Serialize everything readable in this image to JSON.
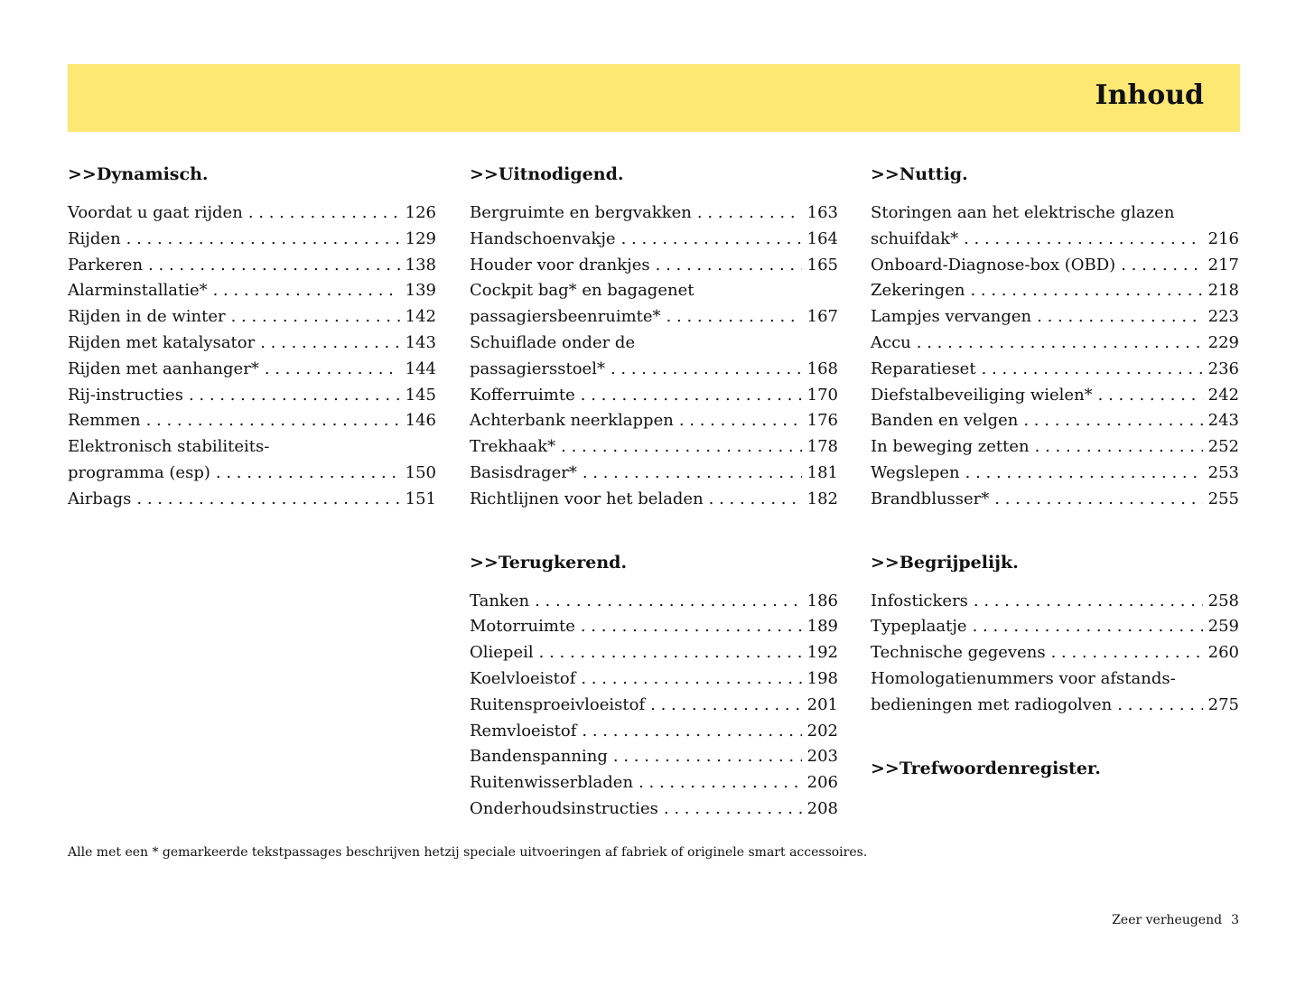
{
  "header": {
    "title": "Inhoud"
  },
  "columns": [
    [
      {
        "heading": ">>Dynamisch.",
        "entries": [
          {
            "text": "Voordat u gaat rijden",
            "page": 126
          },
          {
            "text": "Rijden",
            "page": 129
          },
          {
            "text": "Parkeren",
            "page": 138
          },
          {
            "text": "Alarminstallatie*",
            "page": 139
          },
          {
            "text": "Rijden in de winter",
            "page": 142
          },
          {
            "text": "Rijden met katalysator",
            "page": 143
          },
          {
            "text": "Rijden met aanhanger*",
            "page": 144
          },
          {
            "text": "Rij-instructies",
            "page": 145
          },
          {
            "text": "Remmen",
            "page": 146
          },
          {
            "lines": [
              "Elektronisch stabiliteits-",
              "programma (esp)"
            ],
            "page": 150
          },
          {
            "text": "Airbags",
            "page": 151
          }
        ]
      }
    ],
    [
      {
        "heading": ">>Uitnodigend.",
        "entries": [
          {
            "text": "Bergruimte en bergvakken",
            "page": 163
          },
          {
            "text": "Handschoenvakje",
            "page": 164
          },
          {
            "text": "Houder voor drankjes",
            "page": 165
          },
          {
            "lines": [
              "Cockpit bag* en bagagenet",
              "passagiersbeenruimte*"
            ],
            "page": 167
          },
          {
            "lines": [
              "Schuiflade onder de",
              "passagiersstoel*"
            ],
            "page": 168
          },
          {
            "text": "Kofferruimte",
            "page": 170
          },
          {
            "text": "Achterbank neerklappen",
            "page": 176
          },
          {
            "text": "Trekhaak*",
            "page": 178
          },
          {
            "text": "Basisdrager*",
            "page": 181
          },
          {
            "text": "Richtlijnen voor het beladen",
            "page": 182
          }
        ]
      },
      {
        "heading": ">>Terugkerend.",
        "entries": [
          {
            "text": "Tanken",
            "page": 186
          },
          {
            "text": "Motorruimte",
            "page": 189
          },
          {
            "text": "Oliepeil",
            "page": 192
          },
          {
            "text": "Koelvloeistof",
            "page": 198
          },
          {
            "text": "Ruitensproeivloeistof",
            "page": 201
          },
          {
            "text": "Remvloeistof",
            "page": 202
          },
          {
            "text": "Bandenspanning",
            "page": 203
          },
          {
            "text": "Ruitenwisserbladen",
            "page": 206
          },
          {
            "text": "Onderhoudsinstructies",
            "page": 208
          }
        ]
      }
    ],
    [
      {
        "heading": ">>Nuttig.",
        "entries": [
          {
            "lines": [
              "Storingen aan het elektrische glazen",
              "schuifdak*"
            ],
            "page": 216
          },
          {
            "text": "Onboard-Diagnose-box (OBD)",
            "page": 217
          },
          {
            "text": "Zekeringen",
            "page": 218
          },
          {
            "text": "Lampjes vervangen",
            "page": 223
          },
          {
            "text": "Accu",
            "page": 229
          },
          {
            "text": "Reparatieset",
            "page": 236
          },
          {
            "text": "Diefstalbeveiliging wielen*",
            "page": 242
          },
          {
            "text": "Banden en velgen",
            "page": 243
          },
          {
            "text": "In beweging zetten",
            "page": 252
          },
          {
            "text": "Wegslepen",
            "page": 253
          },
          {
            "text": "Brandblusser*",
            "page": 255
          }
        ]
      },
      {
        "heading": ">>Begrijpelijk.",
        "entries": [
          {
            "text": "Infostickers",
            "page": 258
          },
          {
            "text": "Typeplaatje",
            "page": 259
          },
          {
            "text": "Technische gegevens",
            "page": 260
          },
          {
            "lines": [
              "Homologatienummers voor afstands-",
              "bedieningen met radiogolven"
            ],
            "page": 275
          }
        ]
      },
      {
        "heading": ">>Trefwoordenregister.",
        "entries": []
      }
    ]
  ],
  "footnote": "Alle met een * gemarkeerde tekstpassages beschrijven hetzij speciale uitvoeringen af fabriek of originele smart accessoires.",
  "footer": {
    "text": "Zeer verheugend",
    "page": 3
  }
}
